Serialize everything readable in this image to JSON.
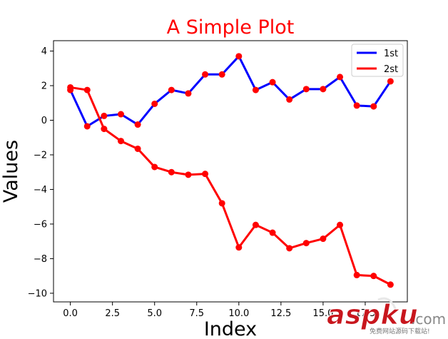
{
  "chart_data": {
    "type": "line",
    "title": "A Simple Plot",
    "xlabel": "Index",
    "ylabel": "Values",
    "xlim": [
      -1,
      20
    ],
    "ylim": [
      -10.5,
      4.6
    ],
    "xticks": [
      0.0,
      2.5,
      5.0,
      7.5,
      10.0,
      12.5,
      15.0,
      17.5
    ],
    "xtick_labels": [
      "0.0",
      "2.5",
      "5.0",
      "7.5",
      "10.0",
      "12.5",
      "15.0",
      "17.5"
    ],
    "yticks": [
      4,
      2,
      0,
      -2,
      -4,
      -6,
      -8,
      -10
    ],
    "ytick_labels": [
      "4",
      "2",
      "0",
      "−2",
      "−4",
      "−6",
      "−8",
      "−10"
    ],
    "grid": false,
    "legend_position": "top-right",
    "marker_color": "#ff0000",
    "x": [
      0,
      1,
      2,
      3,
      4,
      5,
      6,
      7,
      8,
      9,
      10,
      11,
      12,
      13,
      14,
      15,
      16,
      17,
      18,
      19
    ],
    "series": [
      {
        "name": "1st",
        "color": "#0000ff",
        "values": [
          1.75,
          -0.35,
          0.25,
          0.35,
          -0.25,
          0.95,
          1.75,
          1.55,
          2.65,
          2.65,
          3.7,
          1.75,
          2.2,
          1.2,
          1.8,
          1.8,
          2.5,
          0.85,
          0.8,
          2.25
        ]
      },
      {
        "name": "2st",
        "color": "#ff0000",
        "values": [
          1.9,
          1.75,
          -0.5,
          -1.2,
          -1.65,
          -2.7,
          -3.0,
          -3.15,
          -3.1,
          -4.8,
          -7.35,
          -6.05,
          -6.5,
          -7.4,
          -7.1,
          -6.85,
          -6.05,
          -8.95,
          -9.0,
          -9.5
        ]
      }
    ]
  },
  "watermark": {
    "logo_text": "aspku",
    "domain_suffix": ".com",
    "tagline": "免费网站源码下载站!"
  }
}
